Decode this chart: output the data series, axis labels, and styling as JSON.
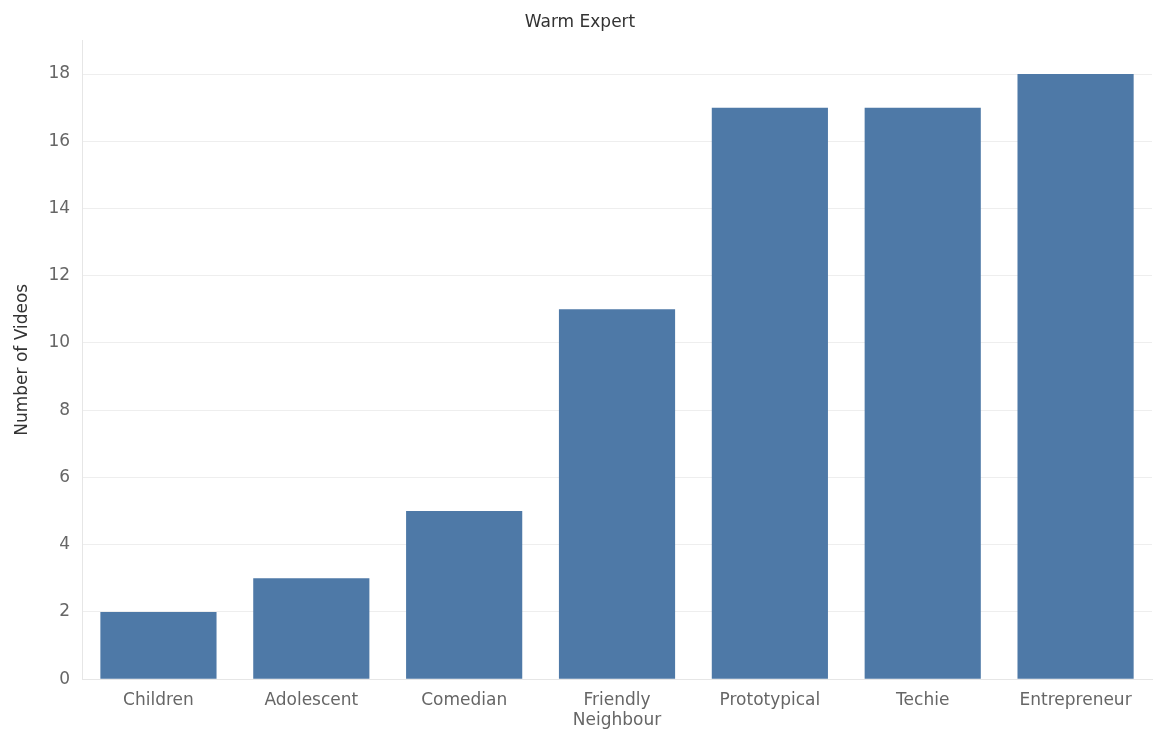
{
  "chart_data": {
    "type": "bar",
    "title": "Warm Expert",
    "ylabel": "Number of Videos",
    "categories": [
      "Children",
      "Adolescent",
      "Comedian",
      "Friendly Neighbour",
      "Prototypical",
      "Techie",
      "Entrepreneur"
    ],
    "values": [
      2,
      3,
      5,
      11,
      17,
      17,
      18
    ],
    "color": "#4e79a7",
    "ylim": [
      0,
      19
    ],
    "yticks": [
      0,
      2,
      4,
      6,
      8,
      10,
      12,
      14,
      16,
      18
    ],
    "grid": "y",
    "legend": false
  }
}
